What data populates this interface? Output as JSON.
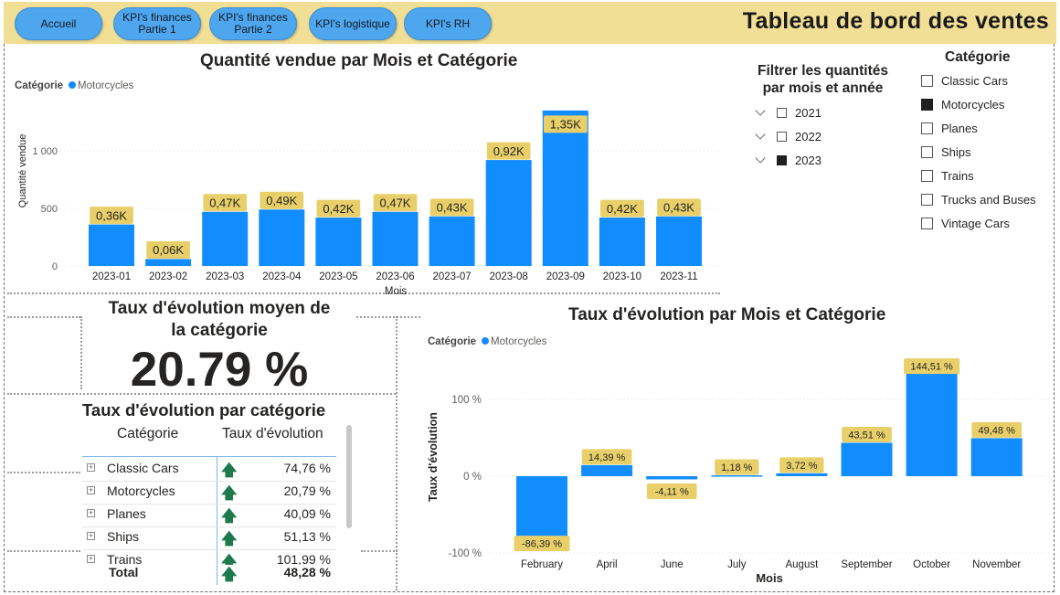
{
  "nav": {
    "buttons": [
      {
        "label": "Accueil"
      },
      {
        "label": "KPI's finances\nPartie 1"
      },
      {
        "label": "KPI's finances\nPartie 2"
      },
      {
        "label": "KPI's logistique"
      },
      {
        "label": "KPI's RH"
      }
    ],
    "page_title": "Tableau de bord des ventes"
  },
  "colors": {
    "bar": "#118dff",
    "label_bg": "#e8cf6a",
    "topbar": "#f1df95",
    "up_arrow": "#1e7a4c"
  },
  "chart_data": [
    {
      "type": "bar",
      "title": "Quantité vendue par Mois et Catégorie",
      "legend_title": "Catégorie",
      "legend_items": [
        "Motorcycles"
      ],
      "legend_position": "top-left",
      "xlabel": "Mois",
      "ylabel": "Quantité vendue",
      "categories": [
        "2023-01",
        "2023-02",
        "2023-03",
        "2023-04",
        "2023-05",
        "2023-06",
        "2023-07",
        "2023-08",
        "2023-09",
        "2023-10",
        "2023-11"
      ],
      "values": [
        360,
        60,
        470,
        490,
        420,
        470,
        430,
        920,
        1350,
        420,
        430
      ],
      "data_labels": [
        "0,36K",
        "0,06K",
        "0,47K",
        "0,49K",
        "0,42K",
        "0,47K",
        "0,43K",
        "0,92K",
        "1,35K",
        "0,42K",
        "0,43K"
      ],
      "y_ticks": [
        0,
        500,
        1000
      ],
      "y_tick_labels": [
        "0",
        "500",
        "1 000"
      ],
      "ylim": [
        0,
        1350
      ],
      "grid": true
    },
    {
      "type": "bar",
      "title": "Taux d'évolution par Mois et Catégorie",
      "legend_title": "Catégorie",
      "legend_items": [
        "Motorcycles"
      ],
      "legend_position": "top-left",
      "xlabel": "Mois",
      "ylabel": "Taux d'évolution",
      "categories": [
        "February",
        "April",
        "June",
        "July",
        "August",
        "September",
        "October",
        "November"
      ],
      "values": [
        -86.39,
        14.39,
        -4.11,
        1.18,
        3.72,
        43.51,
        144.51,
        49.48
      ],
      "data_labels": [
        "-86,39 %",
        "14,39 %",
        "-4,11 %",
        "1,18 %",
        "3,72 %",
        "43,51 %",
        "144,51 %",
        "49,48 %"
      ],
      "y_ticks": [
        -100,
        0,
        100
      ],
      "y_tick_labels": [
        "-100 %",
        "0 %",
        "100 %"
      ],
      "ylim": [
        -100,
        145
      ],
      "grid": true
    }
  ],
  "slicer_years": {
    "title": "Filtrer les quantités\npar mois et année",
    "items": [
      {
        "label": "2021",
        "checked": false
      },
      {
        "label": "2022",
        "checked": false
      },
      {
        "label": "2023",
        "checked": true
      }
    ]
  },
  "slicer_category": {
    "title": "Catégorie",
    "items": [
      {
        "label": "Classic Cars",
        "checked": false
      },
      {
        "label": "Motorcycles",
        "checked": true
      },
      {
        "label": "Planes",
        "checked": false
      },
      {
        "label": "Ships",
        "checked": false
      },
      {
        "label": "Trains",
        "checked": false
      },
      {
        "label": "Trucks and Buses",
        "checked": false
      },
      {
        "label": "Vintage Cars",
        "checked": false
      }
    ]
  },
  "card": {
    "title": "Taux d'évolution moyen de\nla catégorie",
    "value": "20.79 %"
  },
  "table": {
    "title": "Taux d'évolution par catégorie",
    "headers": [
      "Catégorie",
      "Taux d'évolution"
    ],
    "rows": [
      {
        "category": "Classic Cars",
        "value": "74,76 %"
      },
      {
        "category": "Motorcycles",
        "value": "20,79 %"
      },
      {
        "category": "Planes",
        "value": "40,09 %"
      },
      {
        "category": "Ships",
        "value": "51,13 %"
      },
      {
        "category": "Trains",
        "value": "101,99 %"
      }
    ],
    "total_label": "Total",
    "total_value": "48,28 %"
  }
}
